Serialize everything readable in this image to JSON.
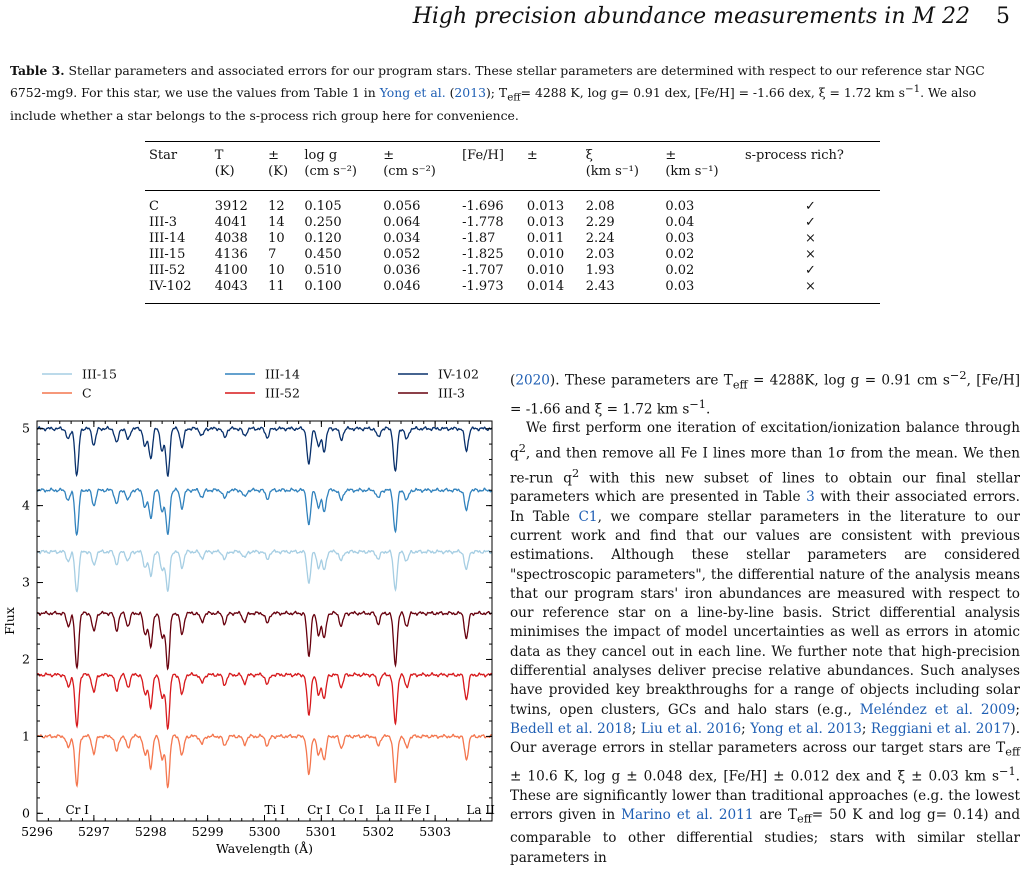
{
  "header": {
    "title": "High precision abundance measurements in M 22",
    "page": "5"
  },
  "caption": {
    "label": "Table 3.",
    "text1": " Stellar parameters and associated errors for our program stars. These stellar parameters are determined with respect to our reference star NGC 6752-mg9. For this star, we use the values from Table 1 in ",
    "ref_name": "Yong et al.",
    "ref_year": "2013",
    "text2": "); T",
    "sub": "eff",
    "text3": "= 4288 K, log g= 0.91 dex, [Fe/H] = -1.66 dex, ξ = 1.72 km s",
    "sup": "−1",
    "text4": ". We also include whether a star belongs to the s-process rich group here for convenience."
  },
  "table": {
    "headers": [
      [
        "Star",
        ""
      ],
      [
        "T",
        "(K)"
      ],
      [
        "±",
        "(K)"
      ],
      [
        "log g",
        "(cm s⁻²)"
      ],
      [
        "±",
        "(cm s⁻²)"
      ],
      [
        "[Fe/H]",
        ""
      ],
      [
        "±",
        ""
      ],
      [
        "ξ",
        "(km s⁻¹)"
      ],
      [
        "±",
        "(km s⁻¹)"
      ],
      [
        "s-process rich?",
        ""
      ]
    ],
    "rows": [
      [
        "C",
        "3912",
        "12",
        "0.105",
        "0.056",
        "-1.696",
        "0.013",
        "2.08",
        "0.03",
        "✓"
      ],
      [
        "III-3",
        "4041",
        "14",
        "0.250",
        "0.064",
        "-1.778",
        "0.013",
        "2.29",
        "0.04",
        "✓"
      ],
      [
        "III-14",
        "4038",
        "10",
        "0.120",
        "0.034",
        "-1.87",
        "0.011",
        "2.24",
        "0.03",
        "×"
      ],
      [
        "III-15",
        "4136",
        "7",
        "0.450",
        "0.052",
        "-1.825",
        "0.010",
        "2.03",
        "0.02",
        "×"
      ],
      [
        "III-52",
        "4100",
        "10",
        "0.510",
        "0.036",
        "-1.707",
        "0.010",
        "1.93",
        "0.02",
        "✓"
      ],
      [
        "IV-102",
        "4043",
        "11",
        "0.100",
        "0.046",
        "-1.973",
        "0.014",
        "2.43",
        "0.03",
        "×"
      ]
    ]
  },
  "chart_data": {
    "type": "line",
    "xlabel": "Wavelength (Å)",
    "ylabel": "Flux",
    "xlim": [
      5296,
      5304
    ],
    "ylim": [
      -0.1,
      5.1
    ],
    "xticks": [
      5296,
      5297,
      5298,
      5299,
      5300,
      5301,
      5302,
      5303
    ],
    "yticks": [
      0,
      1,
      2,
      3,
      4,
      5
    ],
    "line_labels": [
      {
        "text": "Cr I",
        "x": 5296.5
      },
      {
        "text": "Ti I",
        "x": 5300.0
      },
      {
        "text": "Cr I",
        "x": 5300.75
      },
      {
        "text": "Co I",
        "x": 5301.3
      },
      {
        "text": "La II",
        "x": 5301.95
      },
      {
        "text": "Fe I",
        "x": 5302.5
      },
      {
        "text": "La II",
        "x": 5303.55
      }
    ],
    "legend": [
      {
        "name": "III-15",
        "color": "#a6cee3"
      },
      {
        "name": "III-14",
        "color": "#3182bd"
      },
      {
        "name": "IV-102",
        "color": "#08306b"
      },
      {
        "name": "C",
        "color": "#f4764e"
      },
      {
        "name": "III-52",
        "color": "#d7191c"
      },
      {
        "name": "III-3",
        "color": "#67000d"
      }
    ],
    "series": [
      {
        "name": "C",
        "offset": 1.0,
        "color": "#f4764e",
        "depth": 1.0
      },
      {
        "name": "III-52",
        "offset": 1.8,
        "color": "#d7191c",
        "depth": 1.05
      },
      {
        "name": "III-3",
        "offset": 2.6,
        "color": "#67000d",
        "depth": 1.1
      },
      {
        "name": "III-15",
        "offset": 3.4,
        "color": "#a6cee3",
        "depth": 0.8
      },
      {
        "name": "III-14",
        "offset": 4.2,
        "color": "#3182bd",
        "depth": 0.9
      },
      {
        "name": "IV-102",
        "offset": 5.0,
        "color": "#08306b",
        "depth": 0.95
      }
    ],
    "lines": [
      {
        "x": 5296.55,
        "d": 0.15
      },
      {
        "x": 5296.7,
        "d": 0.65
      },
      {
        "x": 5297.0,
        "d": 0.22
      },
      {
        "x": 5297.4,
        "d": 0.2
      },
      {
        "x": 5297.6,
        "d": 0.15
      },
      {
        "x": 5297.9,
        "d": 0.25
      },
      {
        "x": 5298.0,
        "d": 0.4
      },
      {
        "x": 5298.2,
        "d": 0.3
      },
      {
        "x": 5298.3,
        "d": 0.65
      },
      {
        "x": 5298.55,
        "d": 0.25
      },
      {
        "x": 5298.9,
        "d": 0.1
      },
      {
        "x": 5299.3,
        "d": 0.12
      },
      {
        "x": 5299.65,
        "d": 0.1
      },
      {
        "x": 5300.05,
        "d": 0.12
      },
      {
        "x": 5300.78,
        "d": 0.5
      },
      {
        "x": 5300.95,
        "d": 0.25
      },
      {
        "x": 5301.05,
        "d": 0.3
      },
      {
        "x": 5301.35,
        "d": 0.15
      },
      {
        "x": 5302.0,
        "d": 0.12
      },
      {
        "x": 5302.3,
        "d": 0.6
      },
      {
        "x": 5302.5,
        "d": 0.15
      },
      {
        "x": 5303.55,
        "d": 0.3
      }
    ]
  },
  "body": {
    "p1": {
      "year": "2020",
      "text": "). These parameters are T",
      "sub": "eff",
      "text2": " = 4288K, log g = 0.91 cm s",
      "sup": "−2",
      "text3": ", [Fe/H] = -1.66 and ξ = 1.72 km s",
      "sup2": "−1",
      "text4": "."
    },
    "p2": {
      "t1": "We first perform one iteration of excitation/ionization balance through q",
      "sq": "2",
      "t2": ", and then remove all Fe I lines more than 1σ from the mean. We then re-run q",
      "t3": " with this new subset of lines to obtain our final stellar parameters which are presented in Table ",
      "table_ref": "3",
      "t4": " with their associated errors. In Table ",
      "table_ref2": "C1",
      "t5": ", we compare stellar parameters in the literature to our current work and find that our values are consistent with previous estimations. Although these stellar parameters are considered \"spectroscopic parameters\", the differential nature of the analysis means that our program stars' iron abundances are measured with respect to our reference star on a line-by-line basis. Strict differential analysis minimises the impact of model uncertainties as well as errors in atomic data as they cancel out in each line. We further note that high-precision differential analyses deliver precise relative abundances. Such analyses have provided key breakthroughs for a range of objects including solar twins, open clusters, GCs and halo stars (e.g., ",
      "r1": "Meléndez et al. 2009",
      "r2": "Bedell et al. 2018",
      "r3": "Liu et al. 2016",
      "r4": "Yong et al. 2013",
      "r5": "Reggiani et al. 2017",
      "t6": "). Our average errors in stellar parameters across our target stars are T",
      "sub": "eff",
      "t7": " ± 10.6 K, log g ± 0.048 dex, [Fe/H] ± 0.012 dex and ξ ± 0.03 km s",
      "sup": "−1",
      "t8": ". These are significantly lower than traditional approaches (e.g. the lowest errors given in ",
      "r6": "Marino et al. 2011",
      "t9": " are T",
      "t10": "= 50 K and log g= 0.14) and comparable to other differential studies; stars with similar stellar parameters in"
    }
  }
}
